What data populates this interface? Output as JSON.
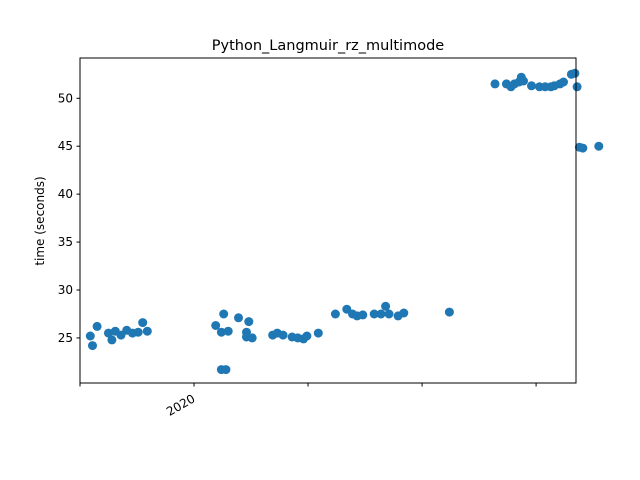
{
  "chart_data": {
    "type": "scatter",
    "title": "Python_Langmuir_rz_multimode",
    "xlabel": "",
    "ylabel": "time (seconds)",
    "ylim": [
      20.3,
      54.2
    ],
    "xlim": [
      2019.0,
      2023.35
    ],
    "yticks": [
      25,
      30,
      35,
      40,
      45,
      50
    ],
    "x_major_ticks": [
      {
        "x": 2020.0,
        "label": "2020"
      }
    ],
    "x_minor_ticks": [
      2019.0,
      2021.0,
      2022.0,
      2023.0
    ],
    "grid": false,
    "color": "#1f77b4",
    "points": [
      [
        2019.09,
        25.2
      ],
      [
        2019.11,
        24.2
      ],
      [
        2019.15,
        26.2
      ],
      [
        2019.25,
        25.5
      ],
      [
        2019.28,
        24.8
      ],
      [
        2019.31,
        25.7
      ],
      [
        2019.36,
        25.3
      ],
      [
        2019.41,
        25.8
      ],
      [
        2019.46,
        25.5
      ],
      [
        2019.51,
        25.6
      ],
      [
        2019.55,
        26.6
      ],
      [
        2019.59,
        25.7
      ],
      [
        2020.19,
        26.3
      ],
      [
        2020.24,
        25.6
      ],
      [
        2020.26,
        27.5
      ],
      [
        2020.3,
        25.7
      ],
      [
        2020.24,
        21.7
      ],
      [
        2020.28,
        21.7
      ],
      [
        2020.39,
        27.1
      ],
      [
        2020.46,
        25.6
      ],
      [
        2020.48,
        26.7
      ],
      [
        2020.46,
        25.1
      ],
      [
        2020.51,
        25.0
      ],
      [
        2020.69,
        25.3
      ],
      [
        2020.73,
        25.5
      ],
      [
        2020.78,
        25.3
      ],
      [
        2020.86,
        25.1
      ],
      [
        2020.91,
        25.0
      ],
      [
        2020.96,
        24.9
      ],
      [
        2020.99,
        25.2
      ],
      [
        2021.09,
        25.5
      ],
      [
        2021.24,
        27.5
      ],
      [
        2021.34,
        28.0
      ],
      [
        2021.39,
        27.5
      ],
      [
        2021.43,
        27.3
      ],
      [
        2021.48,
        27.4
      ],
      [
        2021.58,
        27.5
      ],
      [
        2021.64,
        27.5
      ],
      [
        2021.68,
        28.3
      ],
      [
        2021.71,
        27.5
      ],
      [
        2021.79,
        27.3
      ],
      [
        2021.84,
        27.6
      ],
      [
        2022.24,
        27.7
      ],
      [
        2022.64,
        51.5
      ],
      [
        2022.74,
        51.5
      ],
      [
        2022.78,
        51.2
      ],
      [
        2022.81,
        51.5
      ],
      [
        2022.85,
        51.7
      ],
      [
        2022.87,
        52.2
      ],
      [
        2022.89,
        51.8
      ],
      [
        2022.96,
        51.3
      ],
      [
        2023.03,
        51.2
      ],
      [
        2023.08,
        51.2
      ],
      [
        2023.13,
        51.2
      ],
      [
        2023.16,
        51.3
      ],
      [
        2023.21,
        51.5
      ],
      [
        2023.24,
        51.7
      ],
      [
        2023.31,
        52.5
      ],
      [
        2023.34,
        52.6
      ],
      [
        2023.36,
        51.2
      ],
      [
        2023.38,
        44.9
      ],
      [
        2023.41,
        44.8
      ],
      [
        2023.55,
        45.0
      ]
    ]
  }
}
